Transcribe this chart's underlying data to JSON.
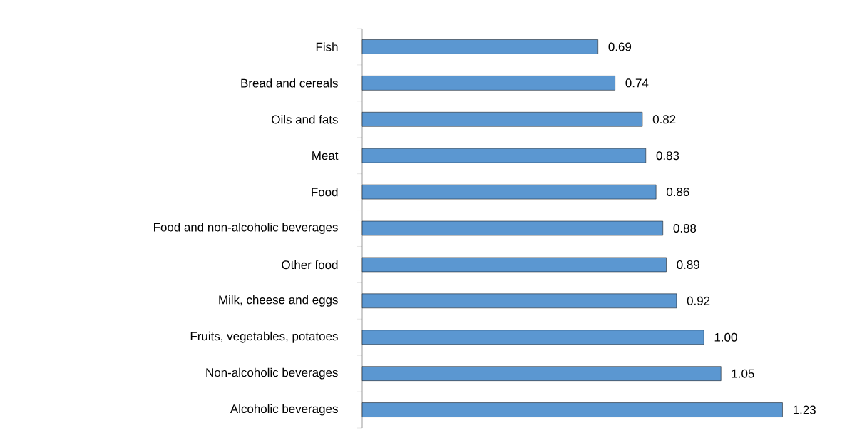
{
  "chart_data": {
    "type": "bar",
    "orientation": "horizontal",
    "categories": [
      "Fish",
      "Bread and cereals",
      "Oils and fats",
      "Meat",
      "Food",
      "Food and non-alcoholic beverages",
      "Other food",
      "Milk, cheese and eggs",
      "Fruits, vegetables, potatoes",
      "Non-alcoholic beverages",
      "Alcoholic beverages"
    ],
    "values": [
      0.69,
      0.74,
      0.82,
      0.83,
      0.86,
      0.88,
      0.89,
      0.92,
      1.0,
      1.05,
      1.23
    ],
    "value_labels": [
      "0.69",
      "0.74",
      "0.82",
      "0.83",
      "0.86",
      "0.88",
      "0.89",
      "0.92",
      "1.00",
      "1.05",
      "1.23"
    ],
    "color": "#5b97d1"
  }
}
